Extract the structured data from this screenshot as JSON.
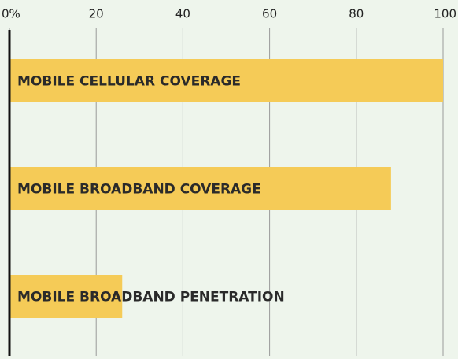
{
  "chart_data": {
    "type": "bar",
    "orientation": "horizontal",
    "categories": [
      "MOBILE CELLULAR COVERAGE",
      "MOBILE BROADBAND COVERAGE",
      "MOBILE BROADBAND PENETRATION"
    ],
    "values": [
      100,
      88,
      26
    ],
    "color": "#f5cb57",
    "xlim": [
      0,
      100
    ],
    "xticks": [
      {
        "value": 0,
        "label": "0%"
      },
      20,
      40,
      60,
      80,
      100
    ],
    "grid": true
  }
}
